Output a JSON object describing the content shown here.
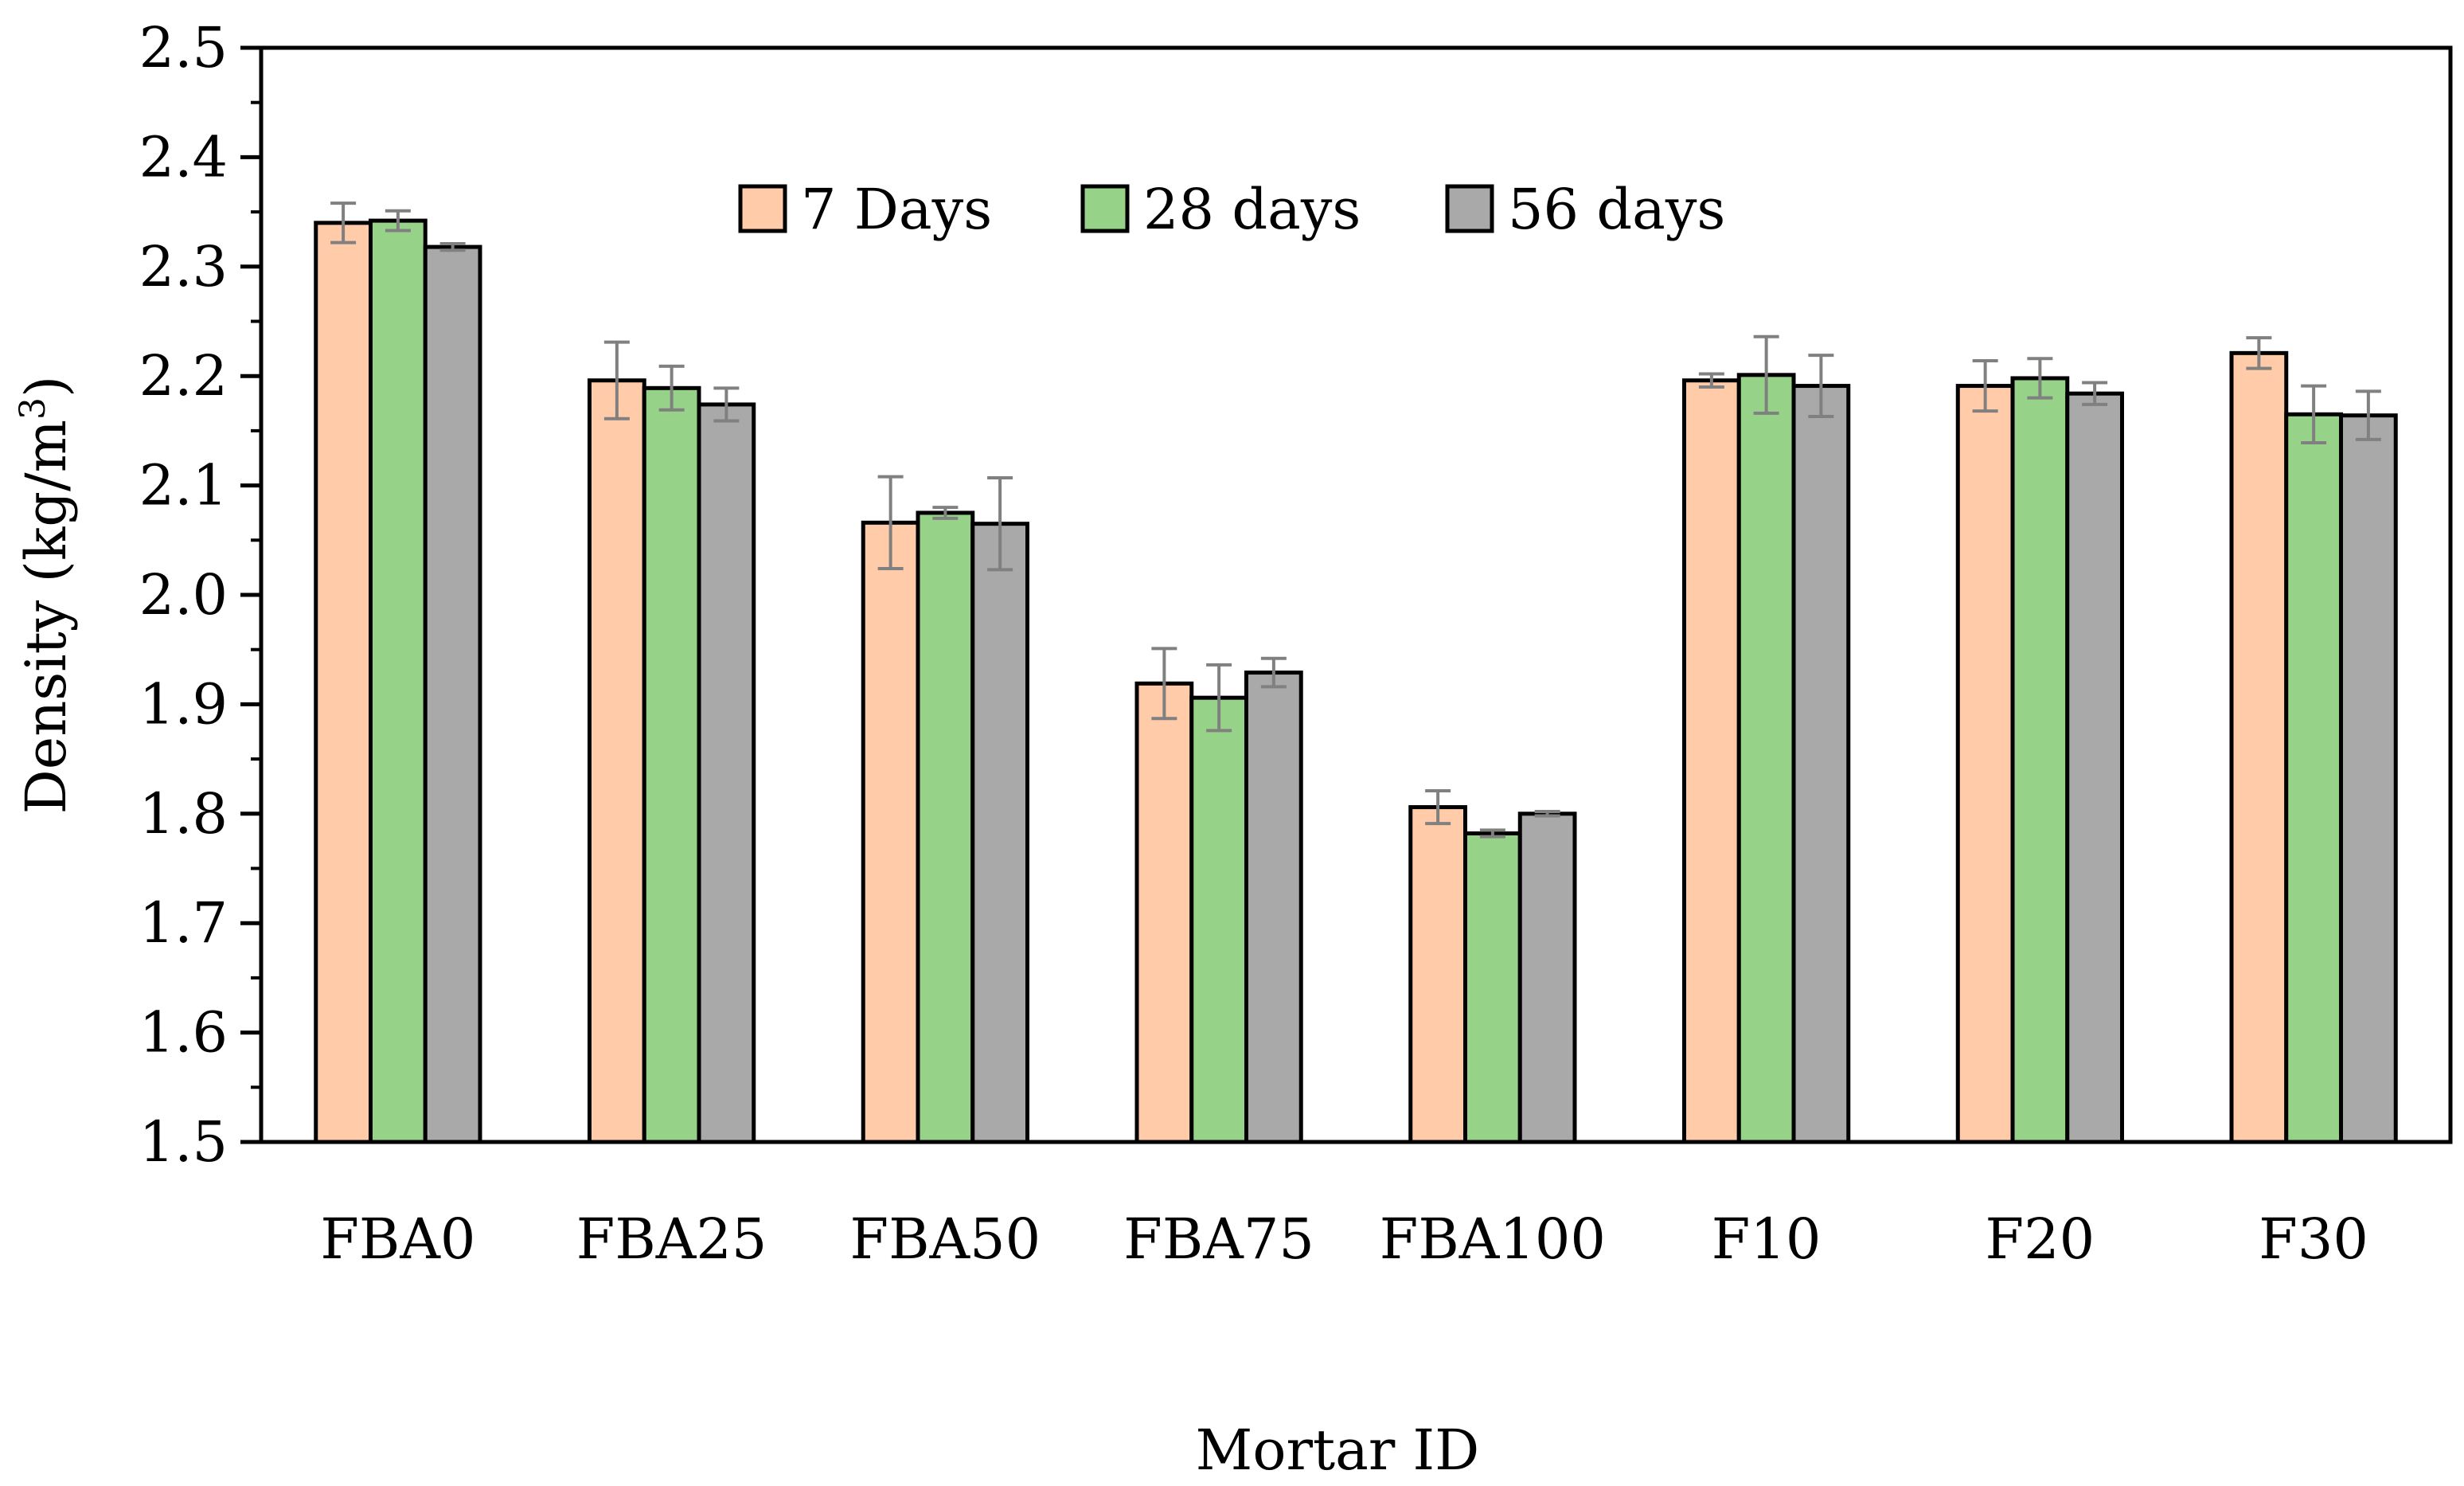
{
  "chart_data": {
    "type": "bar",
    "title": "",
    "xlabel": "Mortar ID",
    "ylabel_text": "Density (kg/m",
    "ylabel_sup": "3",
    "ylabel_close": ")",
    "ylim": [
      1.5,
      2.5
    ],
    "yticks": [
      "1.5",
      "1.6",
      "1.7",
      "1.8",
      "1.9",
      "2.0",
      "2.1",
      "2.2",
      "2.3",
      "2.4",
      "2.5"
    ],
    "grid": false,
    "legend_position": "top-center",
    "categories": [
      "FBA0",
      "FBA25",
      "FBA50",
      "FBA75",
      "FBA100",
      "F10",
      "F20",
      "F30"
    ],
    "series": [
      {
        "name": "7 Days",
        "color": "#FFCBA8",
        "values": [
          2.34,
          2.196,
          2.066,
          1.919,
          1.806,
          2.196,
          2.191,
          2.221
        ],
        "errors": [
          0.018,
          0.035,
          0.042,
          0.032,
          0.015,
          0.006,
          0.023,
          0.014
        ]
      },
      {
        "name": "28 days",
        "color": "#96D389",
        "values": [
          2.342,
          2.189,
          2.075,
          1.906,
          1.782,
          2.201,
          2.198,
          2.165
        ],
        "errors": [
          0.009,
          0.02,
          0.005,
          0.03,
          0.003,
          0.035,
          0.018,
          0.026
        ]
      },
      {
        "name": "56 days",
        "color": "#A9A9A9",
        "values": [
          2.318,
          2.174,
          2.065,
          1.929,
          1.8,
          2.191,
          2.184,
          2.164
        ],
        "errors": [
          0.003,
          0.015,
          0.042,
          0.013,
          0.002,
          0.028,
          0.01,
          0.022
        ]
      }
    ],
    "bar_edge_color": "#000000",
    "error_bar_color": "#808080"
  }
}
